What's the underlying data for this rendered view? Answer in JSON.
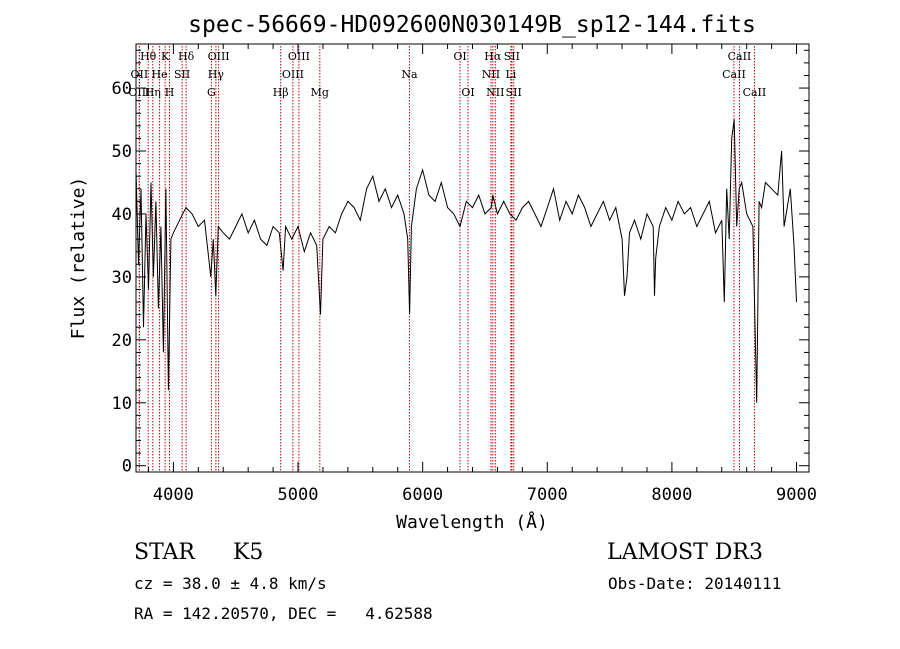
{
  "chart_data": {
    "type": "line",
    "title": "spec-56669-HD092600N030149B_sp12-144.fits",
    "xlabel": "Wavelength (Å)",
    "ylabel": "Flux (relative)",
    "xlim": [
      3700,
      9100
    ],
    "ylim": [
      -1,
      67
    ],
    "xticks": [
      4000,
      5000,
      6000,
      7000,
      8000,
      9000
    ],
    "yticks": [
      0,
      10,
      20,
      30,
      40,
      50,
      60
    ],
    "line_color": "#000000",
    "marker_color": "#cc0000",
    "grid": false,
    "legend": "none",
    "lines": [
      {
        "label": "Hθ",
        "x": 3798,
        "row": 1
      },
      {
        "label": "OII",
        "x": 3727,
        "row": 2
      },
      {
        "label": "OIII",
        "x": 3727,
        "row": 3
      },
      {
        "label": "He",
        "x": 3889,
        "row": 2
      },
      {
        "label": "Hη",
        "x": 3835,
        "row": 3
      },
      {
        "label": "K",
        "x": 3934,
        "row": 1
      },
      {
        "label": "H",
        "x": 3969,
        "row": 3
      },
      {
        "label": "SII",
        "x": 4070,
        "row": 2
      },
      {
        "label": "Hδ",
        "x": 4102,
        "row": 1
      },
      {
        "label": "OIII",
        "x": 4363,
        "row": 1
      },
      {
        "label": "Hγ",
        "x": 4341,
        "row": 2
      },
      {
        "label": "G",
        "x": 4305,
        "row": 3
      },
      {
        "label": "Hβ",
        "x": 4861,
        "row": 3
      },
      {
        "label": "OIII",
        "x": 5007,
        "row": 1
      },
      {
        "label": "OIII",
        "x": 4959,
        "row": 2
      },
      {
        "label": "Mg",
        "x": 5175,
        "row": 3
      },
      {
        "label": "Na",
        "x": 5894,
        "row": 2
      },
      {
        "label": "OI",
        "x": 6300,
        "row": 1
      },
      {
        "label": "OI",
        "x": 6364,
        "row": 3
      },
      {
        "label": "Hα",
        "x": 6563,
        "row": 1
      },
      {
        "label": "SII",
        "x": 6716,
        "row": 1
      },
      {
        "label": "NII",
        "x": 6548,
        "row": 2
      },
      {
        "label": "Li",
        "x": 6708,
        "row": 2
      },
      {
        "label": "NII",
        "x": 6583,
        "row": 3
      },
      {
        "label": "SII",
        "x": 6731,
        "row": 3
      },
      {
        "label": "CaII",
        "x": 8542,
        "row": 1
      },
      {
        "label": "CaII",
        "x": 8498,
        "row": 2
      },
      {
        "label": "CaII",
        "x": 8662,
        "row": 3
      }
    ],
    "spectrum": {
      "x": [
        3700,
        3720,
        3740,
        3760,
        3780,
        3800,
        3820,
        3840,
        3860,
        3880,
        3900,
        3920,
        3940,
        3960,
        3980,
        4000,
        4050,
        4100,
        4150,
        4200,
        4250,
        4300,
        4320,
        4340,
        4360,
        4400,
        4450,
        4500,
        4550,
        4600,
        4650,
        4700,
        4750,
        4800,
        4850,
        4880,
        4900,
        4950,
        5000,
        5050,
        5100,
        5150,
        5180,
        5200,
        5250,
        5300,
        5350,
        5400,
        5450,
        5500,
        5550,
        5600,
        5650,
        5700,
        5750,
        5800,
        5850,
        5880,
        5895,
        5910,
        5950,
        6000,
        6050,
        6100,
        6150,
        6200,
        6250,
        6300,
        6350,
        6400,
        6450,
        6500,
        6550,
        6563,
        6600,
        6650,
        6700,
        6750,
        6800,
        6850,
        6900,
        6950,
        7000,
        7050,
        7100,
        7150,
        7200,
        7250,
        7300,
        7350,
        7400,
        7450,
        7500,
        7550,
        7600,
        7620,
        7640,
        7660,
        7700,
        7750,
        7800,
        7850,
        7860,
        7870,
        7900,
        7950,
        8000,
        8050,
        8100,
        8150,
        8200,
        8250,
        8300,
        8350,
        8400,
        8420,
        8440,
        8460,
        8480,
        8500,
        8520,
        8540,
        8560,
        8600,
        8650,
        8680,
        8700,
        8720,
        8750,
        8800,
        8850,
        8880,
        8900,
        8950,
        8980,
        9000
      ],
      "y": [
        47,
        32,
        44,
        22,
        40,
        28,
        45,
        30,
        42,
        25,
        38,
        18,
        44,
        12,
        36,
        37,
        39,
        41,
        40,
        38,
        39,
        30,
        36,
        27,
        38,
        37,
        36,
        38,
        40,
        37,
        39,
        36,
        35,
        38,
        37,
        31,
        38,
        36,
        38,
        34,
        37,
        35,
        24,
        36,
        38,
        37,
        40,
        42,
        41,
        39,
        44,
        46,
        42,
        44,
        41,
        43,
        40,
        36,
        24,
        38,
        44,
        47,
        43,
        42,
        45,
        41,
        40,
        38,
        42,
        41,
        43,
        40,
        41,
        43,
        40,
        42,
        40,
        39,
        41,
        42,
        40,
        38,
        41,
        44,
        39,
        42,
        40,
        43,
        41,
        38,
        40,
        42,
        39,
        41,
        36,
        27,
        30,
        37,
        39,
        36,
        40,
        38,
        27,
        33,
        38,
        41,
        39,
        42,
        40,
        41,
        38,
        40,
        42,
        37,
        39,
        26,
        44,
        36,
        52,
        55,
        38,
        44,
        45,
        40,
        38,
        10,
        42,
        41,
        45,
        44,
        43,
        50,
        38,
        44,
        35,
        26
      ]
    }
  },
  "info": {
    "class_label": "STAR",
    "subclass": "K5",
    "survey": "LAMOST DR3",
    "cz": "cz = 38.0 ± 4.8 km/s",
    "obs_date": "Obs-Date: 20140111",
    "coords": "RA = 142.20570, DEC =   4.62588"
  }
}
